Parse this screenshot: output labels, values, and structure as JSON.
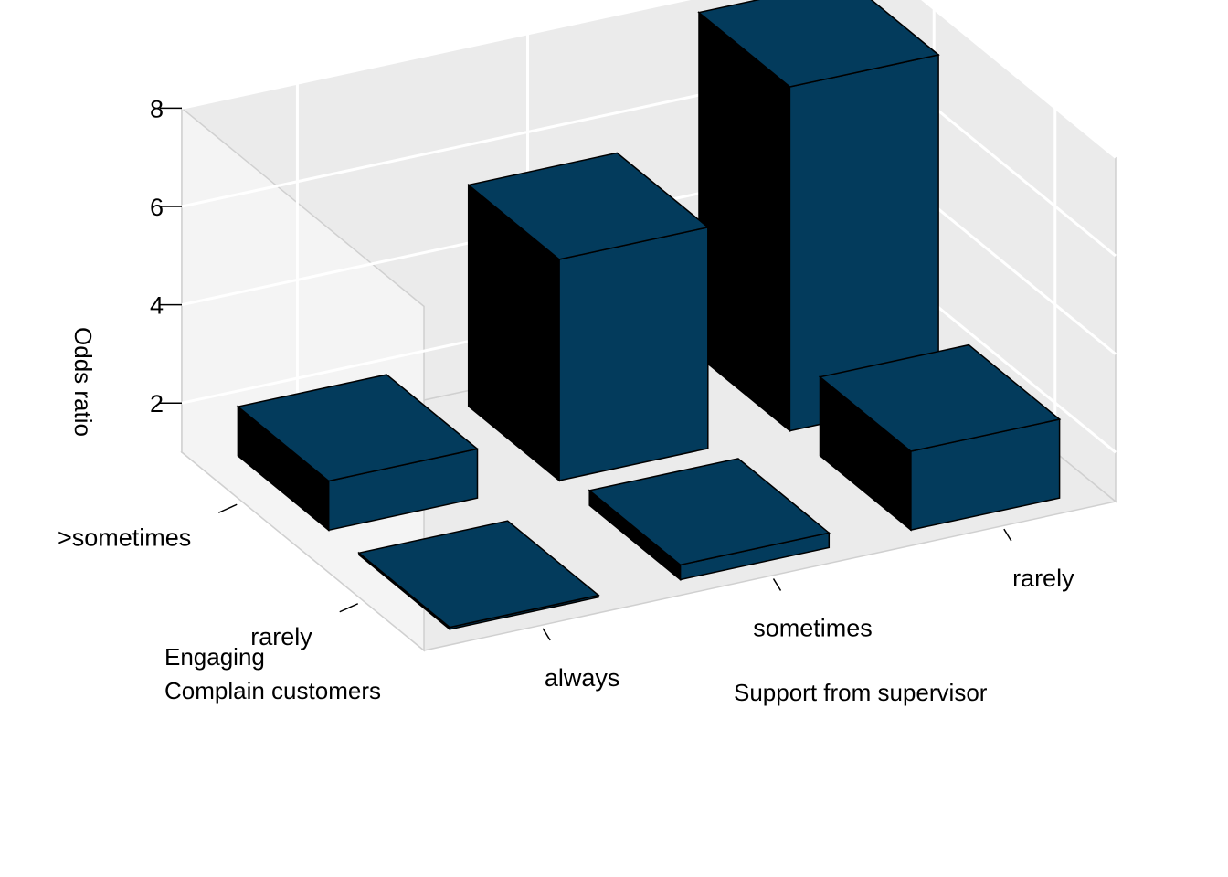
{
  "chart_data": {
    "type": "bar3d",
    "zlabel": "Odds ratio",
    "xlabel": "Support from supervisor",
    "ylabel_lines": [
      "Engaging",
      "Complain customers"
    ],
    "x_categories": [
      "always",
      "sometimes",
      "rarely"
    ],
    "y_categories": [
      "rarely",
      ">sometimes"
    ],
    "z_ticks": [
      "2",
      "4",
      "6",
      "8"
    ],
    "zlim": [
      1,
      8
    ],
    "bars": [
      {
        "support": "always",
        "engaging": "rarely",
        "value": 1.0
      },
      {
        "support": "sometimes",
        "engaging": "rarely",
        "value": 1.3
      },
      {
        "support": "rarely",
        "engaging": "rarely",
        "value": 2.6
      },
      {
        "support": "always",
        "engaging": ">sometimes",
        "value": 2.0
      },
      {
        "support": "sometimes",
        "engaging": ">sometimes",
        "value": 5.5
      },
      {
        "support": "rarely",
        "engaging": ">sometimes",
        "value": 8.0
      }
    ],
    "bar_color": "#033b5c",
    "bar_side_color": "#000000",
    "pane_color": "#ebebeb",
    "grid": true
  }
}
